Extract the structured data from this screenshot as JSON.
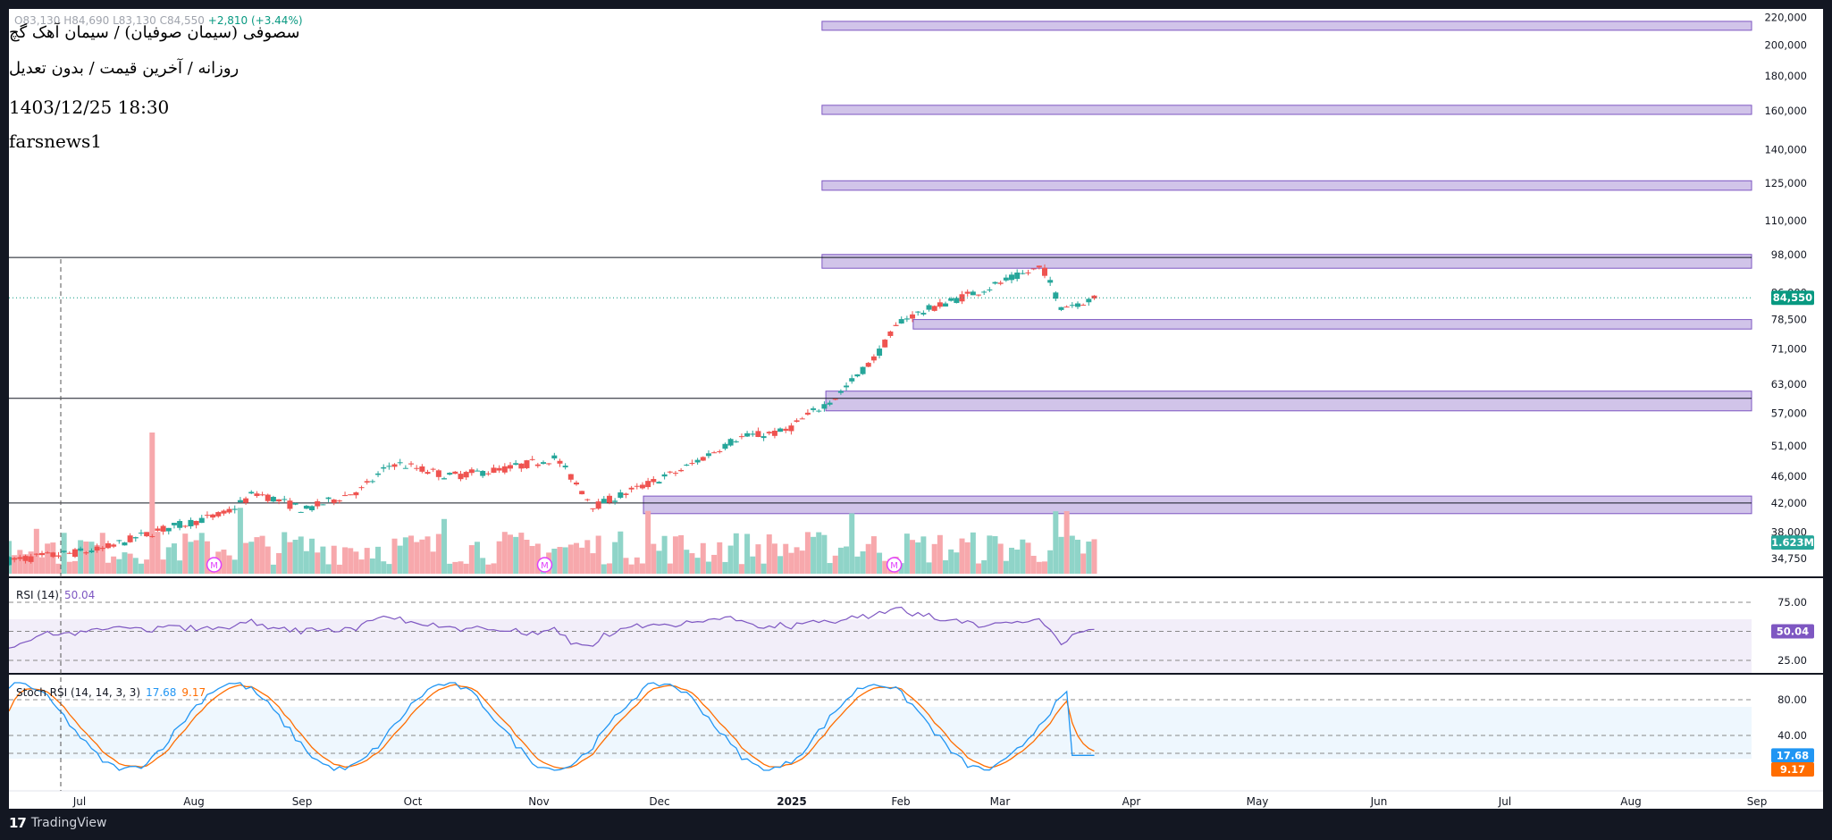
{
  "header": {
    "symbol_title": "سصوفی (سیمان صوفیان) / سیمان آهک گچ",
    "subtitle": "روزانه / آخرین قیمت / بدون تعدیل",
    "datetime": "1403/12/25 18:30",
    "author": "farsnews1",
    "ohlc_prefix": "O83,130 H84,690 L83,130 C84,550",
    "change": "+2,810 (+3.44%)"
  },
  "footer": {
    "logo_mark": "17",
    "brand": "TradingView"
  },
  "colors": {
    "up": "#26a69a",
    "down": "#ef5350",
    "vol_up": "#8fd4c8",
    "vol_down": "#f7a8ac",
    "zone": "#b39ddb",
    "zone_border": "#7e57c2",
    "rsi": "#7e57c2",
    "stoch_k": "#2196f3",
    "stoch_d": "#ff6d00",
    "last_price_badge": "#089981",
    "earnings_marker": "#e040fb"
  },
  "rsi": {
    "name": "RSI (14)",
    "value": "50.04",
    "levels": [
      "75.00",
      "25.00"
    ],
    "ylim": [
      15,
      95
    ]
  },
  "stoch": {
    "name": "Stoch RSI (14, 14, 3, 3)",
    "k": "17.68",
    "d": "9.17",
    "levels": [
      "80.00",
      "40.00"
    ],
    "ylim": [
      -5,
      105
    ]
  },
  "price_axis": {
    "ticks": [
      "220,000",
      "200,000",
      "180,000",
      "160,000",
      "140,000",
      "125,000",
      "110,000",
      "98,000",
      "86,000",
      "78,500",
      "71,000",
      "63,000",
      "57,000",
      "51,000",
      "46,000",
      "42,000",
      "38,000",
      "34,750"
    ],
    "last_price": "84,550",
    "volume_badge": "1.623M"
  },
  "time_axis": {
    "labels": [
      "Jul",
      "Aug",
      "Sep",
      "Oct",
      "Nov",
      "Dec",
      "2025",
      "Feb",
      "Mar",
      "Apr",
      "May",
      "Jun",
      "Jul",
      "Aug",
      "Sep"
    ]
  },
  "chart_data": {
    "type": "candlestick",
    "scale": "log",
    "ylim": [
      33000,
      225000
    ],
    "last_price": 84550,
    "horizontal_lines": [
      97000,
      60000,
      42000
    ],
    "zones": [
      {
        "from": "2025-01",
        "low": 210500,
        "high": 217000
      },
      {
        "from": "2025-01",
        "low": 158000,
        "high": 163000
      },
      {
        "from": "2025-01",
        "low": 122000,
        "high": 126000
      },
      {
        "from": "2025-01",
        "low": 93500,
        "high": 98000
      },
      {
        "from": "2025-01-25",
        "low": 76000,
        "high": 78500
      },
      {
        "from": "2025-01-02",
        "low": 57500,
        "high": 61500
      },
      {
        "from": "2024-11-15",
        "low": 40500,
        "high": 43000
      }
    ],
    "earnings_markers": [
      "2024-07-25",
      "2024-10-20",
      "2025-01-20"
    ],
    "anchors": [
      {
        "x": "2024-06-01",
        "y": 34500
      },
      {
        "x": "2024-06-25",
        "y": 35800
      },
      {
        "x": "2024-07-10",
        "y": 38200
      },
      {
        "x": "2024-07-28",
        "y": 40500
      },
      {
        "x": "2024-08-05",
        "y": 43500
      },
      {
        "x": "2024-08-18",
        "y": 41000
      },
      {
        "x": "2024-09-02",
        "y": 44000
      },
      {
        "x": "2024-09-10",
        "y": 48200
      },
      {
        "x": "2024-09-25",
        "y": 46000
      },
      {
        "x": "2024-10-10",
        "y": 47200
      },
      {
        "x": "2024-10-23",
        "y": 49000
      },
      {
        "x": "2024-11-02",
        "y": 41500
      },
      {
        "x": "2024-11-15",
        "y": 44500
      },
      {
        "x": "2024-11-25",
        "y": 47000
      },
      {
        "x": "2024-12-10",
        "y": 52500
      },
      {
        "x": "2024-12-22",
        "y": 53500
      },
      {
        "x": "2025-01-05",
        "y": 60500
      },
      {
        "x": "2025-01-15",
        "y": 69000
      },
      {
        "x": "2025-01-22",
        "y": 78500
      },
      {
        "x": "2025-02-05",
        "y": 84000
      },
      {
        "x": "2025-02-15",
        "y": 88000
      },
      {
        "x": "2025-02-28",
        "y": 94000
      },
      {
        "x": "2025-03-05",
        "y": 82000
      },
      {
        "x": "2025-03-15",
        "y": 84550
      }
    ]
  }
}
